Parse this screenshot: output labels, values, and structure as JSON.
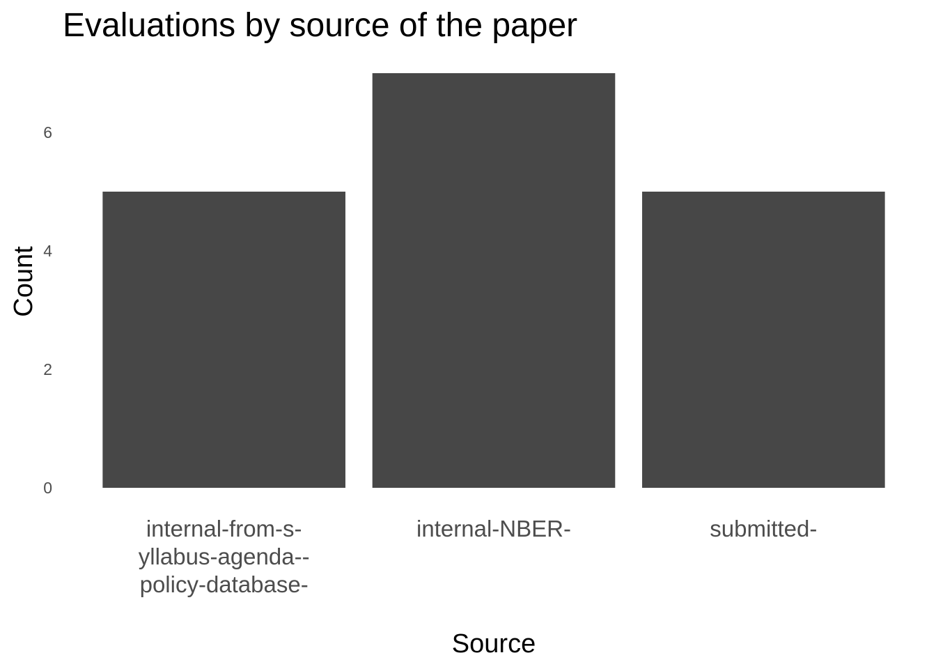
{
  "chart_data": {
    "type": "bar",
    "title": "Evaluations by source of the paper",
    "xlabel": "Source",
    "ylabel": "Count",
    "categories": [
      [
        "internal-from-s-",
        "yllabus-agenda--",
        "policy-database-"
      ],
      [
        "internal-NBER-"
      ],
      [
        "submitted-"
      ]
    ],
    "values": [
      5,
      7,
      5
    ],
    "ylim": [
      0,
      7
    ],
    "yticks": [
      0,
      2,
      4,
      6
    ],
    "bar_color": "#474747",
    "grid": false,
    "legend": "none"
  }
}
